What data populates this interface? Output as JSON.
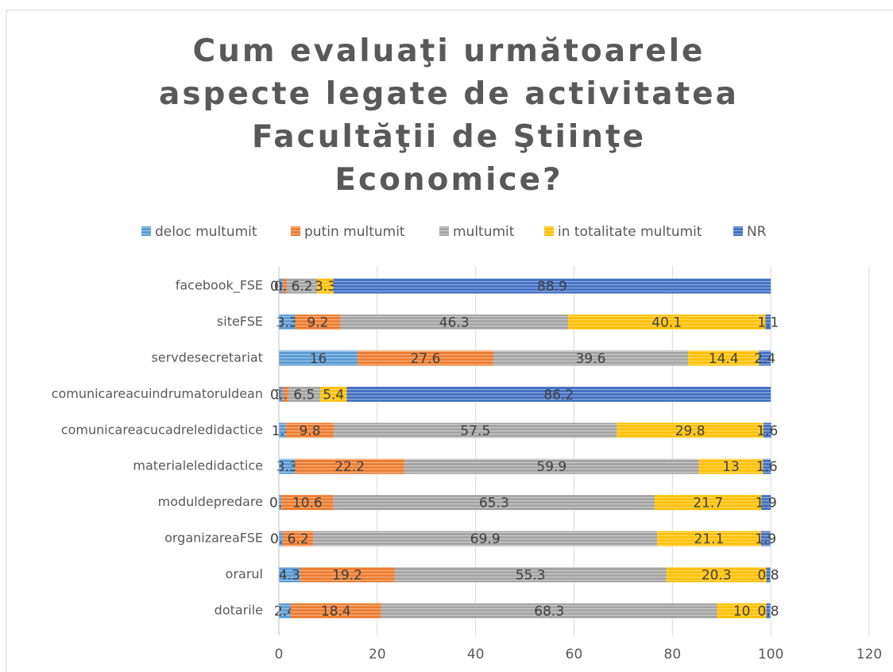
{
  "chart_data": {
    "type": "stacked_barh",
    "title": "Cum evaluaţi următoarele aspecte legate de activitatea Facultăţii de Ştiinţe Economice?",
    "categories": [
      "facebook_FSE",
      "siteFSE",
      "servdesecretariat",
      "comunicareacuindrumatoruldean",
      "comunicareacucadreledidactice",
      "materialeledidactice",
      "moduldepredare",
      "organizareaFSE",
      "orarul",
      "dotarile"
    ],
    "series": [
      {
        "name": "deloc multumit",
        "color": "#5b9bd5",
        "values": [
          0.8,
          3.3,
          16,
          0.8,
          1.4,
          3.3,
          0.5,
          0.8,
          4.3,
          2.4
        ]
      },
      {
        "name": "putin multumit",
        "color": "#ed7d31",
        "values": [
          0.8,
          9.2,
          27.6,
          1.1,
          9.8,
          22.2,
          10.6,
          6.2,
          19.2,
          18.4
        ]
      },
      {
        "name": "multumit",
        "color": "#a5a5a5",
        "values": [
          6.2,
          46.3,
          39.6,
          6.5,
          57.5,
          59.9,
          65.3,
          69.9,
          55.3,
          68.3
        ]
      },
      {
        "name": "in totalitate multumit",
        "color": "#ffc000",
        "values": [
          3.3,
          40.1,
          14.4,
          5.4,
          29.8,
          13,
          21.7,
          21.1,
          20.3,
          10
        ]
      },
      {
        "name": "NR",
        "color": "#4472c4",
        "values": [
          88.9,
          1.1,
          2.4,
          86.2,
          1.6,
          1.6,
          1.9,
          1.9,
          0.8,
          0.8
        ]
      }
    ],
    "xlim": [
      0,
      120
    ],
    "xticks": [
      0,
      20,
      40,
      60,
      80,
      100,
      120
    ],
    "grid": true,
    "legend": "top"
  }
}
